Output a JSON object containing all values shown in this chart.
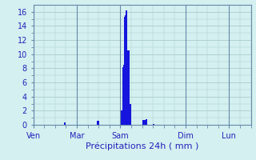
{
  "title": "Précipitations 24h ( mm )",
  "bar_color": "#1515dd",
  "background_color": "#d4f0f0",
  "grid_color": "#aacccc",
  "text_color": "#2222bb",
  "axis_color": "#6688aa",
  "ylim": [
    0,
    17
  ],
  "yticks": [
    0,
    2,
    4,
    6,
    8,
    10,
    12,
    14,
    16
  ],
  "num_bars": 240,
  "day_labels": [
    "Ven",
    "Mar",
    "Sam",
    "Dim",
    "Lun"
  ],
  "day_positions": [
    0,
    48,
    96,
    168,
    216
  ],
  "bar_values": [
    0,
    0,
    0,
    0,
    0,
    0,
    0,
    0,
    0,
    0,
    0,
    0,
    0,
    0,
    0,
    0,
    0,
    0,
    0,
    0,
    0,
    0,
    0,
    0,
    0,
    0,
    0,
    0,
    0,
    0,
    0,
    0,
    0,
    0,
    0.3,
    0.3,
    0,
    0,
    0,
    0,
    0,
    0,
    0,
    0,
    0,
    0,
    0,
    0,
    0,
    0,
    0,
    0,
    0,
    0,
    0,
    0,
    0,
    0,
    0,
    0,
    0,
    0,
    0,
    0,
    0,
    0,
    0,
    0,
    0,
    0,
    0.6,
    0.6,
    0.6,
    0,
    0,
    0,
    0,
    0,
    0,
    0,
    0,
    0,
    0,
    0,
    0,
    0,
    0,
    0,
    0,
    0,
    0,
    0,
    0,
    0,
    0,
    0,
    2.0,
    2.0,
    8.2,
    8.5,
    15.3,
    15.5,
    16.2,
    16.2,
    10.5,
    10.5,
    3.0,
    3.0,
    0,
    0,
    0,
    0,
    0,
    0,
    0,
    0,
    0,
    0,
    0,
    0,
    0.7,
    0.7,
    0.7,
    0.7,
    0.8,
    0.8,
    0,
    0,
    0,
    0,
    0,
    0,
    0.1,
    0.1,
    0,
    0,
    0,
    0,
    0,
    0,
    0,
    0,
    0,
    0,
    0,
    0,
    0,
    0,
    0,
    0,
    0,
    0,
    0,
    0,
    0,
    0,
    0,
    0,
    0,
    0,
    0,
    0,
    0,
    0,
    0,
    0,
    0,
    0,
    0,
    0,
    0,
    0,
    0,
    0,
    0,
    0,
    0,
    0,
    0,
    0,
    0,
    0,
    0,
    0,
    0,
    0,
    0,
    0,
    0,
    0,
    0,
    0,
    0,
    0,
    0,
    0,
    0,
    0,
    0,
    0,
    0,
    0,
    0,
    0,
    0,
    0,
    0,
    0,
    0,
    0,
    0,
    0,
    0,
    0,
    0,
    0
  ]
}
